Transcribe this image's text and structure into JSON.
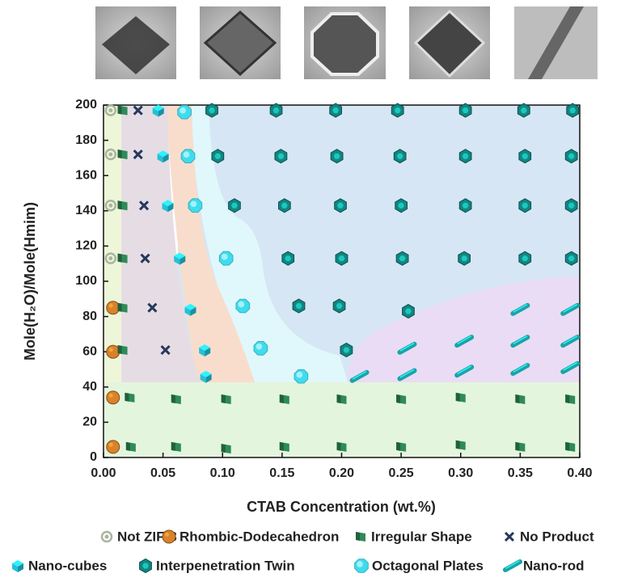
{
  "chart_data": {
    "type": "scatter",
    "x_label": "CTAB Concentration (wt.%)",
    "y_label": "Mole(H₂O)/Mole(Hmim)",
    "xlim": [
      0,
      0.4
    ],
    "ylim": [
      0,
      200
    ],
    "xticks": [
      {
        "value": 0,
        "label": "0.00"
      },
      {
        "value": 0.05,
        "label": "0.05"
      },
      {
        "value": 0.1,
        "label": "0.10"
      },
      {
        "value": 0.15,
        "label": "0.15"
      },
      {
        "value": 0.2,
        "label": "0.20"
      },
      {
        "value": 0.25,
        "label": "0.25"
      },
      {
        "value": 0.3,
        "label": "0.30"
      },
      {
        "value": 0.35,
        "label": "0.35"
      },
      {
        "value": 0.4,
        "label": "0.40"
      }
    ],
    "yticks": [
      0,
      20,
      40,
      60,
      80,
      100,
      120,
      140,
      160,
      180,
      200
    ],
    "grid": false,
    "series": [
      {
        "name": "Not ZIF-8",
        "color": "#a9b5a0",
        "marker": "ring",
        "x": [
          0.006,
          0.006,
          0.006,
          0.006
        ],
        "y": [
          197,
          172,
          143,
          113
        ]
      },
      {
        "name": "Rhombic-Dodecahedron",
        "color": "#d9822b",
        "marker": "sphere",
        "x": [
          0.008,
          0.008,
          0.008,
          0.008
        ],
        "y": [
          85,
          60,
          34,
          6
        ]
      },
      {
        "name": "Irregular Shape",
        "color": "#2e8b57",
        "marker": "flag",
        "x": [
          0.016,
          0.016,
          0.016,
          0.016,
          0.016,
          0.016,
          0.022,
          0.061,
          0.103,
          0.152,
          0.2,
          0.25,
          0.3,
          0.35,
          0.392,
          0.023,
          0.061,
          0.103,
          0.152,
          0.2,
          0.25,
          0.3,
          0.35,
          0.392
        ],
        "y": [
          197,
          172,
          143,
          113,
          85,
          61,
          34,
          33,
          33,
          33,
          33,
          33,
          34,
          33,
          33,
          6,
          6,
          5,
          6,
          6,
          6,
          7,
          6,
          6
        ]
      },
      {
        "name": "No Product",
        "color": "#26385e",
        "marker": "x",
        "x": [
          0.029,
          0.029,
          0.034,
          0.035,
          0.041,
          0.052
        ],
        "y": [
          197,
          172,
          143,
          113,
          85,
          61
        ]
      },
      {
        "name": "Nano-cubes",
        "color": "#23c2d6",
        "marker": "cube",
        "x": [
          0.046,
          0.05,
          0.054,
          0.064,
          0.073,
          0.085,
          0.086
        ],
        "y": [
          197,
          171,
          143,
          113,
          84,
          61,
          46
        ]
      },
      {
        "name": "Interpenetration Twin",
        "color": "#128580",
        "marker": "hex",
        "x": [
          0.091,
          0.145,
          0.195,
          0.247,
          0.304,
          0.353,
          0.394,
          0.096,
          0.149,
          0.196,
          0.249,
          0.304,
          0.354,
          0.393,
          0.11,
          0.152,
          0.199,
          0.25,
          0.304,
          0.354,
          0.393,
          0.155,
          0.2,
          0.251,
          0.303,
          0.354,
          0.393,
          0.164,
          0.198,
          0.256,
          0.204
        ],
        "y": [
          197,
          197,
          197,
          197,
          197,
          197,
          197,
          171,
          171,
          171,
          171,
          171,
          171,
          171,
          143,
          143,
          143,
          143,
          143,
          143,
          143,
          113,
          113,
          113,
          113,
          113,
          113,
          86,
          86,
          83,
          61
        ]
      },
      {
        "name": "Octagonal Plates",
        "color": "#3fdcee",
        "marker": "octagon",
        "x": [
          0.068,
          0.071,
          0.077,
          0.103,
          0.117,
          0.132,
          0.166
        ],
        "y": [
          196,
          171,
          143,
          113,
          86,
          62,
          46
        ]
      },
      {
        "name": "Nano-rod",
        "color": "#1aa3a6",
        "marker": "rod",
        "x": [
          0.215,
          0.255,
          0.255,
          0.303,
          0.303,
          0.35,
          0.35,
          0.35,
          0.392,
          0.392,
          0.392
        ],
        "y": [
          46,
          62,
          47,
          66,
          49,
          84,
          66,
          50,
          84,
          66,
          51
        ]
      }
    ]
  }
}
